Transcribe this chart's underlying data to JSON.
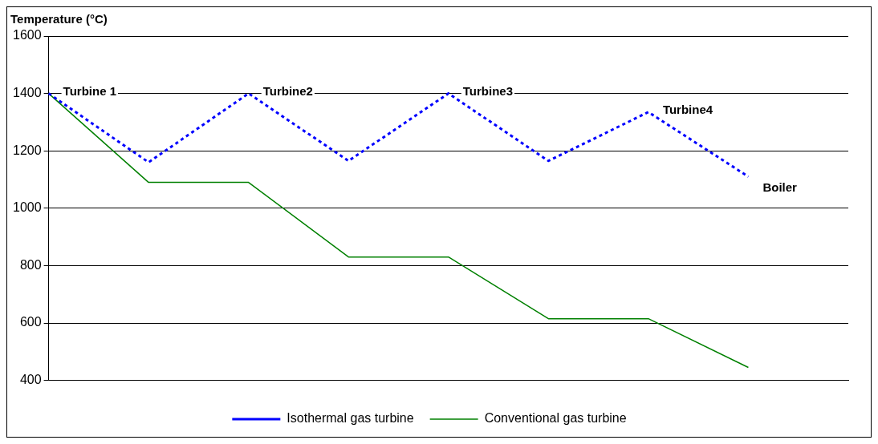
{
  "chart_data": {
    "type": "line",
    "ylabel": "Temperature (°C)",
    "categories": [
      null,
      null,
      null,
      null,
      null,
      null,
      null,
      null,
      null
    ],
    "series": [
      {
        "name": "Isothermal gas turbine",
        "color": "#0000ff",
        "line_style": "dashed",
        "values": [
          1400,
          1160,
          1400,
          1165,
          1400,
          1165,
          1335,
          1110,
          null
        ]
      },
      {
        "name": "Conventional gas turbine",
        "color": "#008000",
        "line_style": "solid",
        "values": [
          1400,
          1090,
          1090,
          830,
          830,
          615,
          615,
          445,
          null
        ]
      }
    ],
    "annotations": [
      "Turbine 1",
      "Turbine2",
      "Turbine3",
      "Turbine4",
      "Boiler"
    ],
    "ylim": [
      400,
      1600
    ],
    "yticks": [
      400,
      600,
      800,
      1000,
      1200,
      1400,
      1600
    ],
    "grid": "y",
    "legend": "bottom",
    "marker": "none"
  }
}
